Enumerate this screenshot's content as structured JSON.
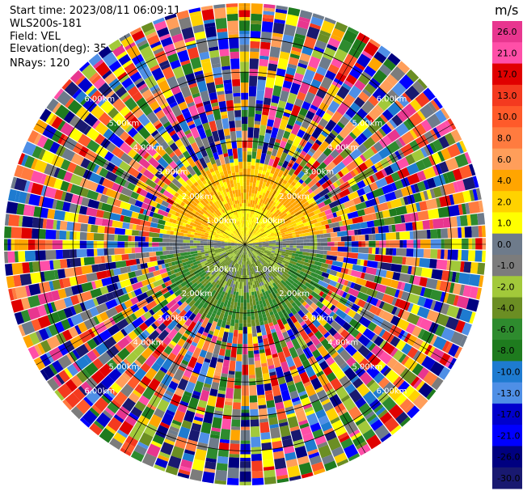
{
  "header": {
    "start_time": "Start time: 2023/08/11 06:09:11",
    "instrument": "WLS200s-181",
    "field": "Field: VEL",
    "elevation": "Elevation(deg): 35.30",
    "nrays": "NRays: 120"
  },
  "chart_data": {
    "type": "heatmap",
    "projection": "polar-ppi",
    "field": "VEL",
    "units": "m/s",
    "n_rays": 120,
    "range_rings_km": [
      1.0,
      2.0,
      3.0,
      4.0,
      5.0,
      6.0
    ],
    "ring_labels": [
      "1.00km",
      "2.00km",
      "3.00km",
      "4.00km",
      "5.00km",
      "6.00km"
    ],
    "max_range_km": 7.0,
    "coherent_range_km": 2.4,
    "pattern": "positive (toward north, yellow/orange) velocities in the northern half and negative (green) in the southern half within ~2.4 km; noisy random colors beyond",
    "colorbar": {
      "unit_label": "m/s",
      "ticks": [
        "26.0",
        "21.0",
        "17.0",
        "13.0",
        "10.0",
        "8.0",
        "6.0",
        "4.0",
        "2.0",
        "1.0",
        "0.0",
        "-1.0",
        "-2.0",
        "-4.0",
        "-6.0",
        "-8.0",
        "-10.0",
        "-13.0",
        "-17.0",
        "-21.0",
        "-26.0",
        "-30.0"
      ],
      "colors": [
        "#e8368f",
        "#ff4fa8",
        "#e00000",
        "#f43a1f",
        "#ff5a2a",
        "#ff7b3f",
        "#ff9e5a",
        "#ffa500",
        "#ffd200",
        "#ffff00",
        "#6e7b8b",
        "#7c7c7c",
        "#a2c93a",
        "#6b8e23",
        "#2e8b2e",
        "#1e7b1e",
        "#1e7bd0",
        "#4f8fe6",
        "#0000cd",
        "#0000ff",
        "#000080",
        "#191970"
      ]
    }
  }
}
